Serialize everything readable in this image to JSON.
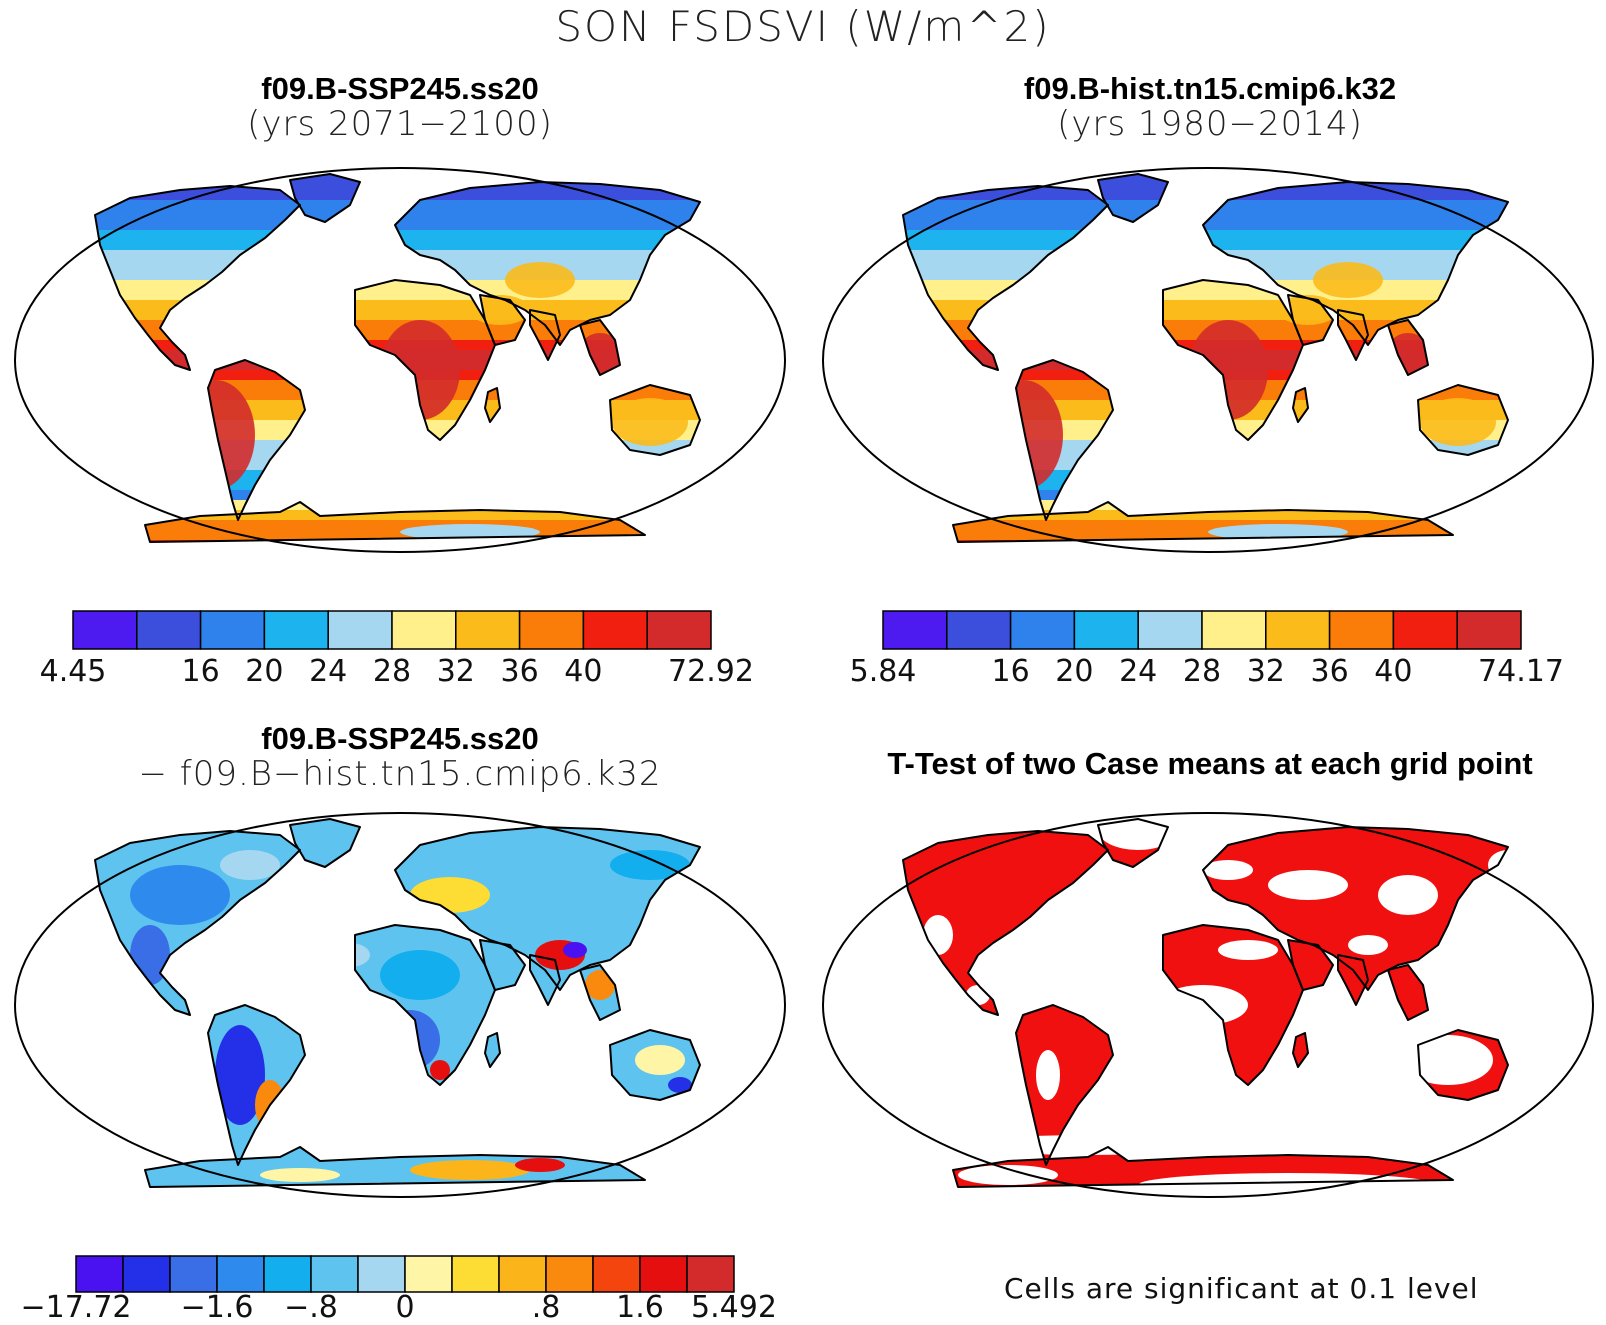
{
  "figure": {
    "main_title": "SON FSDSVI (W/m^2)",
    "panels": [
      {
        "id": "case1",
        "title_line1": "f09.B-SSP245.ss20",
        "title_line2": "(yrs 2071−2100)",
        "colors": [
          "#4d1aef",
          "#3b4fdc",
          "#2f82ec",
          "#1cb3ee",
          "#a6d7f0",
          "#fff08c",
          "#fbbb1b",
          "#f97d08",
          "#f01f0f",
          "#d32b2b"
        ],
        "tick_labels": [
          "4.45",
          "",
          "16",
          "20",
          "24",
          "28",
          "32",
          "36",
          "40",
          "",
          "72.92"
        ]
      },
      {
        "id": "case2",
        "title_line1": "f09.B-hist.tn15.cmip6.k32",
        "title_line2": "(yrs 1980−2014)",
        "colors": [
          "#4d1aef",
          "#3b4fdc",
          "#2f82ec",
          "#1cb3ee",
          "#a6d7f0",
          "#fff08c",
          "#fbbb1b",
          "#f97d08",
          "#f01f0f",
          "#d32b2b"
        ],
        "tick_labels": [
          "5.84",
          "",
          "16",
          "20",
          "24",
          "28",
          "32",
          "36",
          "40",
          "",
          "74.17"
        ]
      },
      {
        "id": "diff",
        "title_line1": "f09.B-SSP245.ss20",
        "title_line2": "− f09.B−hist.tn15.cmip6.k32",
        "colors": [
          "#4a12f0",
          "#2430e8",
          "#3a6ee6",
          "#2e8aec",
          "#12aeee",
          "#5ec3ef",
          "#a6d7f0",
          "#fff5a6",
          "#fddc34",
          "#fbb51a",
          "#f98a0d",
          "#f5450e",
          "#e60f0f",
          "#d32b2b"
        ],
        "tick_labels": [
          "−17.72",
          "",
          "",
          "−1.6",
          "",
          "−.8",
          "",
          "0",
          "",
          "",
          ".8",
          "",
          "1.6",
          "",
          "5.492"
        ]
      },
      {
        "id": "ttest",
        "title": "T-Test of two Case means at each grid point",
        "note": "Cells are significant at 0.1 level",
        "significance_color": "#f01010"
      }
    ]
  }
}
